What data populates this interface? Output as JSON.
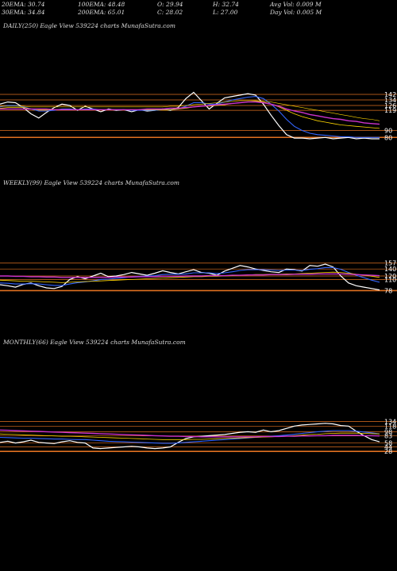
{
  "stats": {
    "ema20": "20EMA: 30.74",
    "ema30": "30EMA: 34.84",
    "ema100": "100EMA: 48.48",
    "ema200": "200EMA: 65.01",
    "open": "O: 29.94",
    "close": "C: 28.02",
    "high": "H: 32.74",
    "low": "L: 27.00",
    "avg_vol": "Avg Vol: 0.009 M",
    "day_vol": "Day Vol: 0.005 M"
  },
  "colors": {
    "background": "#000000",
    "price": "#ffffff",
    "ema_fast": "#3366ff",
    "ema_mid": "#ffd700",
    "ema_slow": "#cc33cc",
    "level": "#e07020"
  },
  "chart_data": [
    {
      "type": "line",
      "title": "DAILY(250) Eagle   View  539224  charts MunafaSutra.com",
      "ylim": [
        70,
        150
      ],
      "tick_labels": [
        "142",
        "134",
        "126",
        "119",
        "90",
        "80"
      ],
      "levels": [
        142,
        134,
        126,
        119,
        90,
        80
      ],
      "series": [
        {
          "role": "price",
          "values": [
            128,
            131,
            130,
            123,
            114,
            108,
            116,
            123,
            128,
            126,
            119,
            125,
            121,
            117,
            121,
            119,
            120,
            117,
            120,
            118,
            119,
            121,
            119,
            123,
            136,
            145,
            133,
            121,
            129,
            137,
            139,
            141,
            143,
            141,
            128,
            112,
            97,
            84,
            79,
            79,
            78,
            79,
            80,
            78,
            79,
            80,
            78,
            79,
            78,
            78
          ]
        },
        {
          "role": "ema_fast",
          "values": [
            124,
            126,
            126,
            124,
            121,
            118,
            118,
            119,
            121,
            121,
            120,
            121,
            121,
            120,
            120,
            120,
            120,
            119,
            119,
            119,
            119,
            120,
            120,
            121,
            125,
            130,
            130,
            128,
            128,
            131,
            134,
            136,
            138,
            139,
            136,
            128,
            118,
            106,
            96,
            90,
            86,
            84,
            83,
            82,
            81,
            81,
            80,
            80,
            80,
            80
          ]
        },
        {
          "role": "ema_mid",
          "values": [
            122,
            123,
            123,
            123,
            121,
            120,
            120,
            120,
            120,
            120,
            120,
            120,
            120,
            120,
            120,
            120,
            120,
            120,
            120,
            120,
            120,
            120,
            120,
            121,
            122,
            124,
            125,
            125,
            126,
            127,
            129,
            130,
            131,
            132,
            131,
            128,
            124,
            119,
            114,
            110,
            107,
            104,
            102,
            100,
            98,
            97,
            96,
            95,
            94,
            93
          ]
        },
        {
          "role": "ema_slow",
          "values": [
            121,
            121,
            121,
            121,
            121,
            121,
            121,
            120,
            120,
            120,
            120,
            120,
            120,
            120,
            120,
            120,
            120,
            120,
            120,
            121,
            121,
            121,
            122,
            122,
            123,
            124,
            125,
            126,
            127,
            128,
            129,
            130,
            131,
            131,
            130,
            128,
            125,
            121,
            118,
            116,
            113,
            111,
            109,
            107,
            106,
            104,
            103,
            101,
            100,
            99
          ]
        },
        {
          "role": "ema_slow2",
          "values": [
            125,
            125,
            125,
            125,
            124,
            124,
            124,
            124,
            124,
            124,
            124,
            124,
            124,
            124,
            124,
            124,
            124,
            124,
            124,
            124,
            124,
            124,
            125,
            125,
            126,
            127,
            128,
            129,
            130,
            131,
            132,
            133,
            133,
            133,
            132,
            131,
            129,
            127,
            125,
            123,
            121,
            119,
            117,
            115,
            113,
            111,
            109,
            107,
            106,
            104
          ]
        }
      ]
    },
    {
      "type": "line",
      "title": "WEEKLY(99) Eagle   View  539224  charts MunafaSutra.com",
      "ylim": [
        70,
        170
      ],
      "tick_labels": [
        "157",
        "140",
        "120",
        "110",
        "78"
      ],
      "levels": [
        157,
        140,
        120,
        110,
        78
      ],
      "series": [
        {
          "role": "price",
          "values": [
            95,
            92,
            88,
            96,
            100,
            92,
            86,
            84,
            90,
            110,
            118,
            112,
            120,
            128,
            118,
            120,
            124,
            130,
            126,
            122,
            128,
            135,
            130,
            126,
            132,
            138,
            130,
            128,
            122,
            134,
            142,
            150,
            146,
            140,
            136,
            132,
            130,
            140,
            138,
            134,
            150,
            148,
            154,
            146,
            120,
            100,
            92,
            88,
            84,
            80
          ]
        },
        {
          "role": "ema_fast",
          "values": [
            100,
            99,
            97,
            97,
            98,
            97,
            95,
            93,
            93,
            97,
            101,
            103,
            106,
            110,
            111,
            113,
            115,
            118,
            119,
            120,
            121,
            124,
            125,
            125,
            126,
            129,
            129,
            129,
            127,
            129,
            132,
            136,
            138,
            138,
            138,
            137,
            136,
            137,
            137,
            136,
            139,
            141,
            144,
            144,
            139,
            130,
            122,
            115,
            108,
            102
          ]
        },
        {
          "role": "ema_mid",
          "values": [
            108,
            107,
            106,
            105,
            105,
            104,
            103,
            102,
            101,
            102,
            103,
            104,
            105,
            106,
            107,
            108,
            109,
            110,
            111,
            112,
            113,
            114,
            115,
            116,
            117,
            118,
            118,
            119,
            119,
            120,
            121,
            122,
            123,
            124,
            124,
            125,
            125,
            126,
            126,
            127,
            128,
            129,
            130,
            131,
            130,
            128,
            125,
            122,
            119,
            116
          ]
        },
        {
          "role": "ema_slow",
          "values": [
            120,
            120,
            119,
            119,
            118,
            118,
            117,
            117,
            116,
            116,
            116,
            116,
            116,
            116,
            116,
            117,
            117,
            117,
            118,
            118,
            118,
            119,
            119,
            119,
            120,
            120,
            120,
            121,
            121,
            121,
            122,
            122,
            123,
            123,
            123,
            124,
            124,
            124,
            125,
            125,
            125,
            126,
            126,
            126,
            126,
            125,
            124,
            123,
            122,
            121
          ]
        }
      ]
    },
    {
      "type": "line",
      "title": "MONTHLY(66) Eagle   View  539224  charts MunafaSutra.com",
      "ylim": [
        20,
        150
      ],
      "tick_labels": [
        "134",
        "118",
        "98",
        "83",
        "58",
        "44",
        "28"
      ],
      "levels": [
        134,
        118,
        98,
        83,
        58,
        44,
        28
      ],
      "series": [
        {
          "role": "price",
          "values": [
            60,
            64,
            58,
            62,
            68,
            60,
            58,
            56,
            62,
            66,
            60,
            58,
            40,
            38,
            40,
            42,
            44,
            46,
            44,
            40,
            38,
            40,
            44,
            60,
            74,
            80,
            82,
            84,
            86,
            88,
            92,
            96,
            98,
            96,
            104,
            98,
            102,
            110,
            118,
            122,
            124,
            126,
            128,
            126,
            120,
            118,
            100,
            84,
            70,
            62
          ]
        },
        {
          "role": "ema_fast",
          "values": [
            78,
            77,
            76,
            75,
            75,
            74,
            73,
            72,
            72,
            71,
            70,
            70,
            68,
            66,
            64,
            63,
            62,
            61,
            60,
            59,
            58,
            57,
            57,
            58,
            60,
            62,
            64,
            66,
            68,
            70,
            72,
            74,
            76,
            78,
            80,
            82,
            84,
            86,
            89,
            92,
            95,
            98,
            100,
            102,
            102,
            102,
            100,
            97,
            94,
            90
          ]
        },
        {
          "role": "ema_mid",
          "values": [
            90,
            89,
            88,
            87,
            86,
            85,
            84,
            83,
            82,
            82,
            81,
            80,
            79,
            78,
            77,
            76,
            75,
            74,
            73,
            72,
            71,
            70,
            70,
            70,
            70,
            71,
            71,
            72,
            73,
            74,
            75,
            76,
            77,
            78,
            79,
            80,
            81,
            82,
            84,
            86,
            88,
            89,
            91,
            92,
            93,
            93,
            93,
            92,
            91,
            90
          ]
        },
        {
          "role": "ema_slow",
          "values": [
            104,
            103,
            102,
            101,
            100,
            99,
            98,
            97,
            96,
            95,
            94,
            93,
            92,
            91,
            90,
            89,
            88,
            87,
            86,
            85,
            84,
            83,
            82,
            82,
            81,
            81,
            80,
            80,
            80,
            80,
            80,
            80,
            80,
            80,
            81,
            81,
            81,
            82,
            82,
            83,
            83,
            84,
            84,
            85,
            85,
            85,
            85,
            84,
            84,
            83
          ]
        }
      ]
    }
  ]
}
